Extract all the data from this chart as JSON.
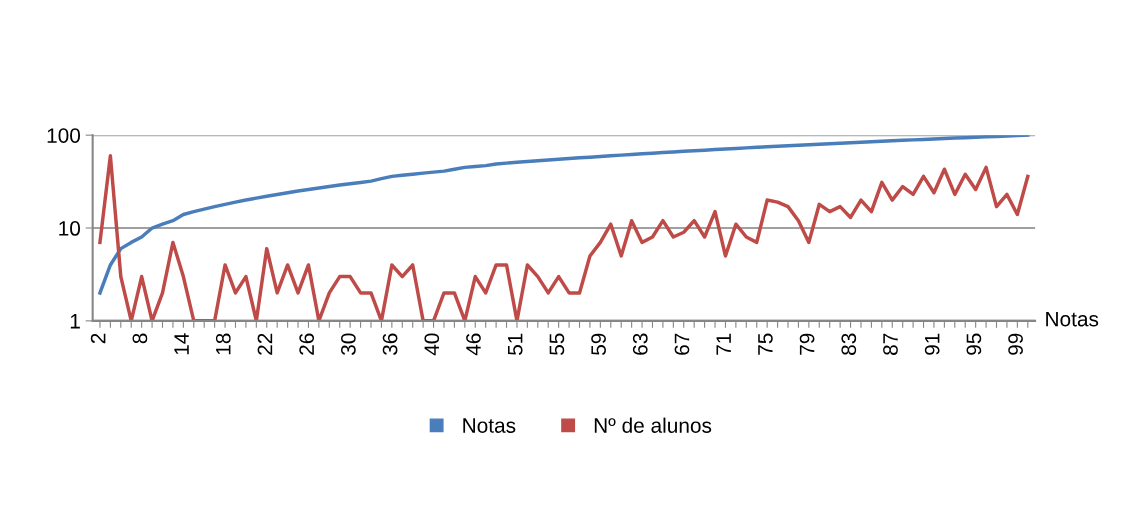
{
  "chart_data": {
    "type": "line",
    "xlabel": "Notas",
    "categories": [
      "2",
      null,
      null,
      null,
      "8",
      null,
      null,
      null,
      "14",
      null,
      null,
      null,
      "18",
      null,
      null,
      null,
      "22",
      null,
      null,
      null,
      "26",
      null,
      null,
      null,
      "30",
      null,
      null,
      null,
      "36",
      null,
      null,
      null,
      "40",
      null,
      null,
      null,
      "46",
      null,
      null,
      null,
      "51",
      null,
      null,
      null,
      "55",
      null,
      null,
      null,
      "59",
      null,
      null,
      null,
      "63",
      null,
      null,
      null,
      "67",
      null,
      null,
      null,
      "71",
      null,
      null,
      null,
      "75",
      null,
      null,
      null,
      "79",
      null,
      null,
      null,
      "83",
      null,
      null,
      null,
      "87",
      null,
      null,
      null,
      "91",
      null,
      null,
      null,
      "95",
      null,
      null,
      null,
      "99",
      null
    ],
    "series": [
      {
        "name": "Notas",
        "color": "#4a7ebb",
        "values": [
          2,
          4,
          6,
          7,
          8,
          10,
          11,
          12,
          14,
          15,
          16,
          17,
          18,
          19,
          20,
          21,
          22,
          23,
          24,
          25,
          26,
          27,
          28,
          29,
          30,
          31,
          32,
          34,
          36,
          37,
          38,
          39,
          40,
          41,
          43,
          45,
          46,
          47,
          49,
          50,
          51,
          52,
          53,
          54,
          55,
          56,
          57,
          58,
          59,
          60,
          61,
          62,
          63,
          64,
          65,
          66,
          67,
          68,
          69,
          70,
          71,
          72,
          73,
          74,
          75,
          76,
          77,
          78,
          79,
          80,
          81,
          82,
          83,
          84,
          85,
          86,
          87,
          88,
          89,
          90,
          91,
          92,
          93,
          94,
          95,
          96,
          97,
          98,
          99,
          100
        ]
      },
      {
        "name": "Nº de alunos",
        "color": "#be4b48",
        "values": [
          7,
          60,
          3,
          1,
          3,
          1,
          2,
          7,
          3,
          1,
          1,
          1,
          4,
          2,
          3,
          1,
          6,
          2,
          4,
          2,
          4,
          1,
          2,
          3,
          3,
          2,
          2,
          1,
          4,
          3,
          4,
          1,
          1,
          2,
          2,
          1,
          3,
          2,
          4,
          4,
          1,
          4,
          3,
          2,
          3,
          2,
          2,
          5,
          7,
          11,
          5,
          12,
          7,
          8,
          12,
          8,
          9,
          12,
          8,
          15,
          5,
          11,
          8,
          7,
          20,
          19,
          17,
          12,
          7,
          18,
          15,
          17,
          13,
          20,
          15,
          31,
          20,
          28,
          23,
          36,
          24,
          43,
          23,
          38,
          26,
          45,
          17,
          23,
          14,
          36
        ]
      }
    ],
    "log": "y",
    "ylim": [
      1,
      100
    ],
    "yticks": [
      1,
      10,
      100
    ],
    "grid": "y",
    "legend": "bottom"
  }
}
